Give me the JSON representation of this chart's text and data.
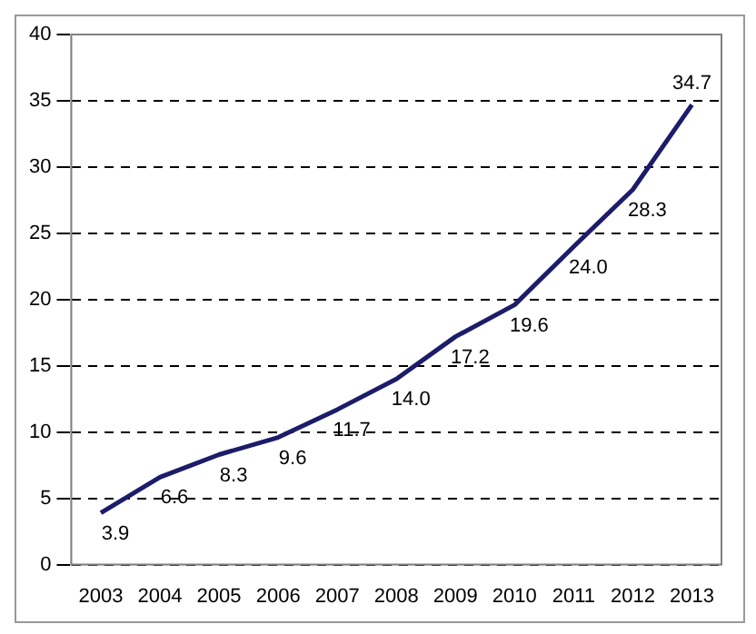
{
  "chart_data": {
    "type": "line",
    "categories": [
      "2003",
      "2004",
      "2005",
      "2006",
      "2007",
      "2008",
      "2009",
      "2010",
      "2011",
      "2012",
      "2013"
    ],
    "series": [
      {
        "color": "#1c1c6b",
        "values": [
          3.9,
          6.6,
          8.3,
          9.6,
          11.7,
          14.0,
          17.2,
          19.6,
          24.0,
          28.3,
          34.7
        ]
      }
    ],
    "value_labels": [
      "3.9",
      "6.6",
      "8.3",
      "9.6",
      "11.7",
      "14.0",
      "17.2",
      "19.6",
      "24.0",
      "28.3",
      "34.7"
    ],
    "ylim": [
      0,
      40
    ],
    "yticks": [
      0,
      5,
      10,
      15,
      20,
      25,
      30,
      35,
      40
    ],
    "grid": "y",
    "legend": false,
    "marker": "none",
    "line_style": "solid"
  }
}
